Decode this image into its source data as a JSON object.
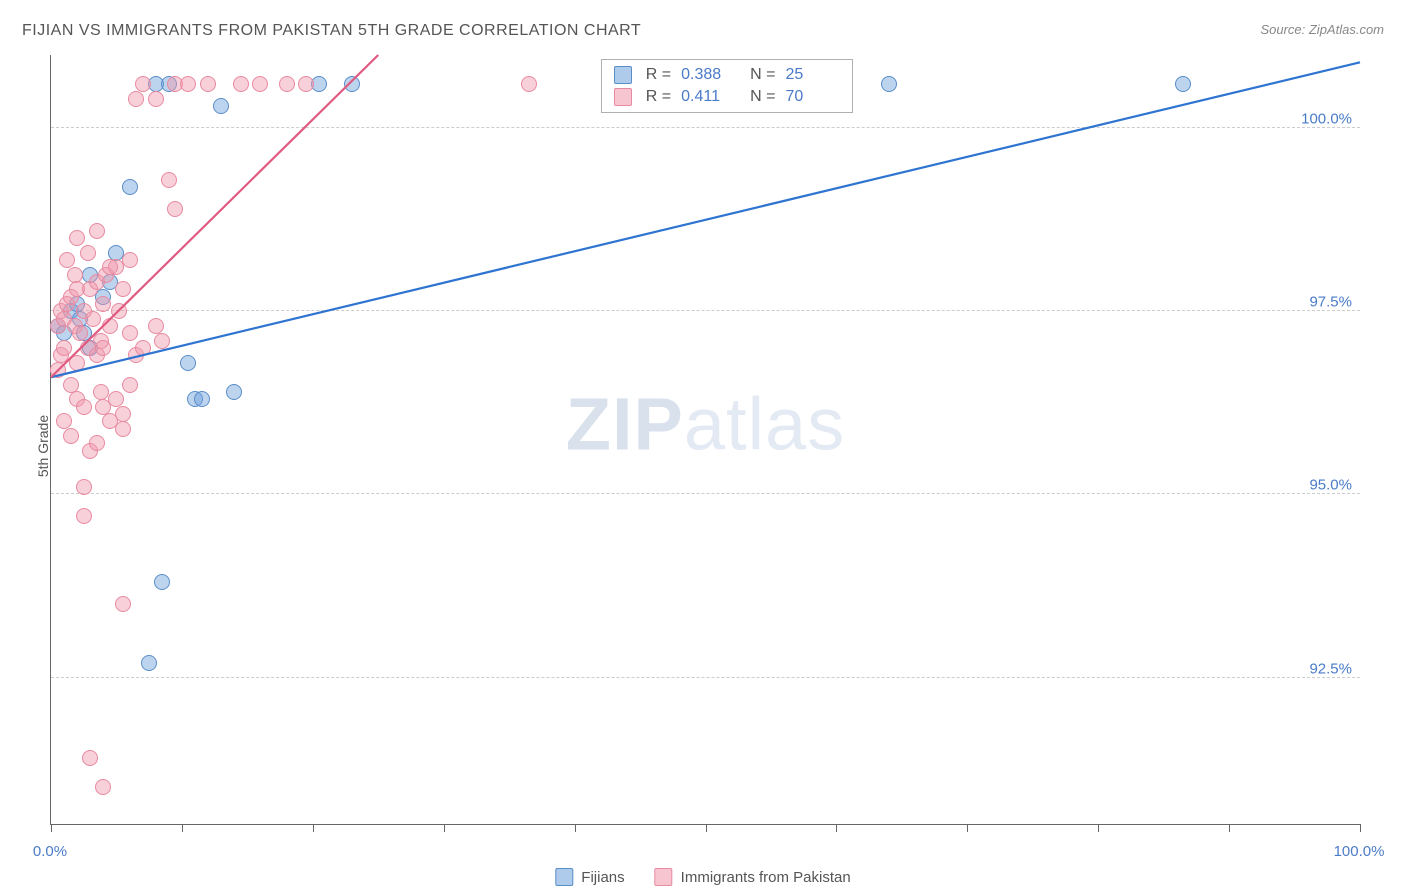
{
  "title": "FIJIAN VS IMMIGRANTS FROM PAKISTAN 5TH GRADE CORRELATION CHART",
  "source": "Source: ZipAtlas.com",
  "ylabel": "5th Grade",
  "watermark_zip": "ZIP",
  "watermark_atlas": "atlas",
  "chart": {
    "type": "scatter",
    "xlim": [
      0,
      100
    ],
    "ylim": [
      90.5,
      101.0
    ],
    "background_color": "#ffffff",
    "grid_color": "#cccccc",
    "yticks": [
      92.5,
      95.0,
      97.5,
      100.0
    ],
    "ytick_labels": [
      "92.5%",
      "95.0%",
      "97.5%",
      "100.0%"
    ],
    "xticks": [
      0,
      10,
      20,
      30,
      40,
      50,
      60,
      70,
      80,
      90,
      100
    ],
    "xtick_labels_shown": {
      "0": "0.0%",
      "100": "100.0%"
    },
    "marker_size": 16,
    "series": [
      {
        "name": "Fijians",
        "label": "Fijians",
        "color_fill": "rgba(108,160,220,0.45)",
        "color_border": "#5a8ec8",
        "R": "0.388",
        "N": "25",
        "trend": {
          "x1": 0,
          "y1": 96.6,
          "x2": 100,
          "y2": 100.9,
          "color": "#2e74d0",
          "width": 2.2
        },
        "points": [
          [
            0.5,
            97.3
          ],
          [
            1.0,
            97.2
          ],
          [
            1.5,
            97.5
          ],
          [
            2.0,
            97.6
          ],
          [
            2.2,
            97.4
          ],
          [
            2.5,
            97.2
          ],
          [
            3.0,
            98.0
          ],
          [
            4.0,
            97.7
          ],
          [
            5.0,
            98.3
          ],
          [
            6.0,
            99.2
          ],
          [
            8.0,
            100.6
          ],
          [
            9.0,
            100.6
          ],
          [
            10.5,
            96.8
          ],
          [
            11.0,
            96.3
          ],
          [
            11.5,
            96.3
          ],
          [
            13.0,
            100.3
          ],
          [
            14.0,
            96.4
          ],
          [
            20.5,
            100.6
          ],
          [
            23.0,
            100.6
          ],
          [
            64.0,
            100.6
          ],
          [
            86.5,
            100.6
          ],
          [
            7.5,
            92.7
          ],
          [
            8.5,
            93.8
          ],
          [
            3.0,
            97.0
          ],
          [
            4.5,
            97.9
          ]
        ]
      },
      {
        "name": "Immigrants from Pakistan",
        "label": "Immigrants from Pakistan",
        "color_fill": "rgba(240,150,170,0.45)",
        "color_border": "#e88aa0",
        "R": "0.411",
        "N": "70",
        "trend": {
          "x1": 0,
          "y1": 96.6,
          "x2": 25,
          "y2": 101.0,
          "color": "#e05a80",
          "width": 2.2
        },
        "points": [
          [
            0.5,
            97.3
          ],
          [
            0.8,
            97.5
          ],
          [
            1.0,
            97.4
          ],
          [
            1.2,
            97.6
          ],
          [
            1.5,
            97.7
          ],
          [
            1.8,
            97.3
          ],
          [
            2.0,
            97.8
          ],
          [
            2.2,
            97.2
          ],
          [
            2.5,
            97.5
          ],
          [
            2.8,
            97.0
          ],
          [
            3.0,
            97.8
          ],
          [
            3.2,
            97.4
          ],
          [
            3.5,
            97.9
          ],
          [
            3.8,
            97.1
          ],
          [
            4.0,
            97.6
          ],
          [
            4.2,
            98.0
          ],
          [
            4.5,
            97.3
          ],
          [
            5.0,
            98.1
          ],
          [
            5.2,
            97.5
          ],
          [
            5.5,
            97.8
          ],
          [
            6.0,
            97.2
          ],
          [
            6.5,
            100.4
          ],
          [
            7.0,
            100.6
          ],
          [
            8.0,
            100.4
          ],
          [
            9.0,
            99.3
          ],
          [
            9.5,
            100.6
          ],
          [
            10.5,
            100.6
          ],
          [
            12.0,
            100.6
          ],
          [
            14.5,
            100.6
          ],
          [
            16.0,
            100.6
          ],
          [
            18.0,
            100.6
          ],
          [
            19.5,
            100.6
          ],
          [
            36.5,
            100.6
          ],
          [
            2.5,
            95.1
          ],
          [
            3.0,
            95.6
          ],
          [
            3.5,
            95.7
          ],
          [
            4.0,
            96.2
          ],
          [
            4.5,
            96.0
          ],
          [
            5.0,
            96.3
          ],
          [
            5.5,
            96.1
          ],
          [
            6.0,
            96.5
          ],
          [
            2.0,
            96.8
          ],
          [
            3.5,
            96.9
          ],
          [
            4.0,
            97.0
          ],
          [
            6.5,
            96.9
          ],
          [
            7.0,
            97.0
          ],
          [
            8.0,
            97.3
          ],
          [
            8.5,
            97.1
          ],
          [
            1.5,
            96.5
          ],
          [
            2.0,
            96.3
          ],
          [
            2.5,
            94.7
          ],
          [
            3.0,
            91.4
          ],
          [
            4.0,
            91.0
          ],
          [
            5.5,
            93.5
          ],
          [
            1.0,
            96.0
          ],
          [
            1.5,
            95.8
          ],
          [
            2.5,
            96.2
          ],
          [
            0.8,
            96.9
          ],
          [
            3.8,
            96.4
          ],
          [
            5.5,
            95.9
          ],
          [
            1.2,
            98.2
          ],
          [
            2.0,
            98.5
          ],
          [
            2.8,
            98.3
          ],
          [
            3.5,
            98.6
          ],
          [
            4.5,
            98.1
          ],
          [
            0.5,
            96.7
          ],
          [
            1.0,
            97.0
          ],
          [
            1.8,
            98.0
          ],
          [
            6.0,
            98.2
          ],
          [
            9.5,
            98.9
          ]
        ]
      }
    ],
    "stat_legend": {
      "left_pct": 42,
      "top_pct": 0.5
    }
  },
  "legend_labels": {
    "r": "R =",
    "n": "N ="
  }
}
